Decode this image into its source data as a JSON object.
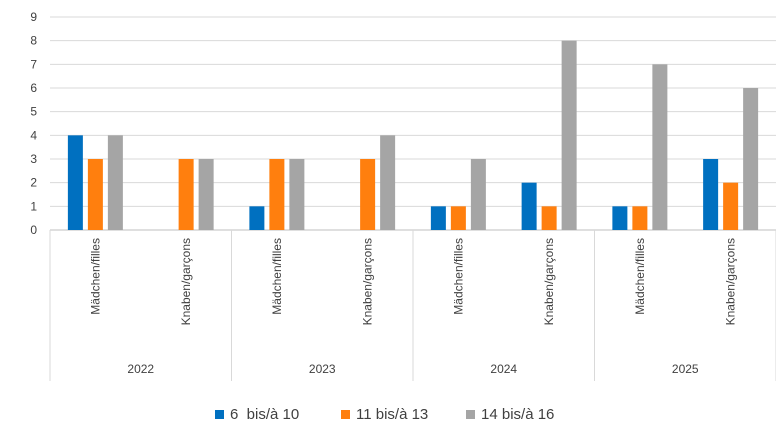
{
  "chart_data": {
    "type": "bar",
    "title": "",
    "xlabel": "",
    "ylabel": "",
    "ylim": [
      0,
      9
    ],
    "yticks": [
      0,
      1,
      2,
      3,
      4,
      5,
      6,
      7,
      8,
      9
    ],
    "grid": true,
    "legend_position": "bottom",
    "groups": [
      {
        "label": "2022",
        "categories": [
          "Mädchen/filles",
          "Knaben/garçons"
        ]
      },
      {
        "label": "2023",
        "categories": [
          "Mädchen/filles",
          "Knaben/garçons"
        ]
      },
      {
        "label": "2024",
        "categories": [
          "Mädchen/filles",
          "Knaben/garçons"
        ]
      },
      {
        "label": "2025",
        "categories": [
          "Mädchen/filles",
          "Knaben/garçons"
        ]
      }
    ],
    "series": [
      {
        "name": "6  bis/à 10",
        "color": "#0070C0",
        "values": [
          4,
          0,
          1,
          0,
          1,
          2,
          1,
          3
        ]
      },
      {
        "name": "11 bis/à 13",
        "color": "#FF7F0E",
        "values": [
          3,
          3,
          3,
          3,
          1,
          1,
          1,
          2
        ]
      },
      {
        "name": "14 bis/à 16",
        "color": "#A5A5A5",
        "values": [
          4,
          3,
          3,
          4,
          3,
          8,
          7,
          6
        ]
      }
    ]
  }
}
